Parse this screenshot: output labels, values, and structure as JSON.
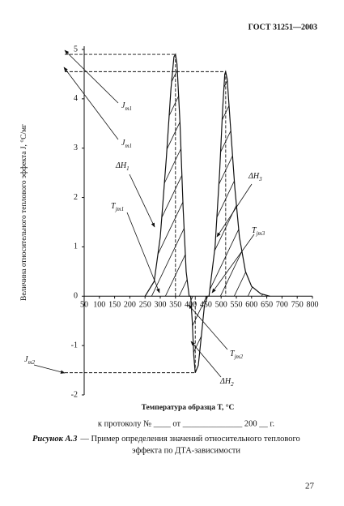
{
  "header": "ГОСТ 31251—2003",
  "chart_data": {
    "type": "line",
    "ylabel": "Величина относительного теплового эффекта J, °С/мг",
    "xlabel": "Температура образца T, °С",
    "x": [
      250,
      280,
      300,
      320,
      335,
      345,
      350,
      355,
      365,
      375,
      385,
      395,
      400,
      405,
      410,
      415,
      425,
      435,
      445,
      455,
      460,
      480,
      495,
      505,
      512,
      515,
      520,
      530,
      545,
      560,
      580,
      600,
      630,
      660
    ],
    "series": [
      {
        "color": "#111111",
        "values": [
          0,
          0.3,
          1.2,
          2.8,
          4.2,
          4.85,
          4.9,
          4.7,
          3.5,
          1.8,
          0.5,
          0,
          0,
          -0.5,
          -1.2,
          -1.55,
          -1.4,
          -0.8,
          -0.2,
          0,
          0,
          1,
          2.5,
          3.8,
          4.5,
          4.55,
          4.4,
          3.5,
          2.2,
          1.2,
          0.5,
          0.2,
          0.05,
          0
        ]
      }
    ],
    "xlim": [
      50,
      800
    ],
    "xticks": [
      50,
      100,
      150,
      200,
      250,
      300,
      350,
      400,
      450,
      500,
      550,
      600,
      650,
      700,
      750,
      800
    ],
    "ylim": [
      -2,
      5
    ],
    "yticks": [
      -2,
      -1,
      0,
      1,
      2,
      3,
      4,
      5
    ],
    "annotations": [
      {
        "text": "J",
        "sub": "m1"
      },
      {
        "text": "J",
        "sub": "m1"
      },
      {
        "text": "ΔH",
        "sub": "1"
      },
      {
        "text": "T",
        "sub": "jm1"
      },
      {
        "text": "ΔH",
        "sub": "3"
      },
      {
        "text": "T",
        "sub": "jm3"
      },
      {
        "text": "T",
        "sub": "jm2"
      },
      {
        "text": "ΔH",
        "sub": "2"
      },
      {
        "text": "J",
        "sub": "m2"
      }
    ]
  },
  "protocol": "к протоколу № ____ от ______________ 200 __ г.",
  "caption": {
    "label": "Рисунок А.3",
    "line1": "— Пример определения значений относительного теплового",
    "line2": "эффекта по ДТА-зависимости"
  },
  "page_number": "27"
}
